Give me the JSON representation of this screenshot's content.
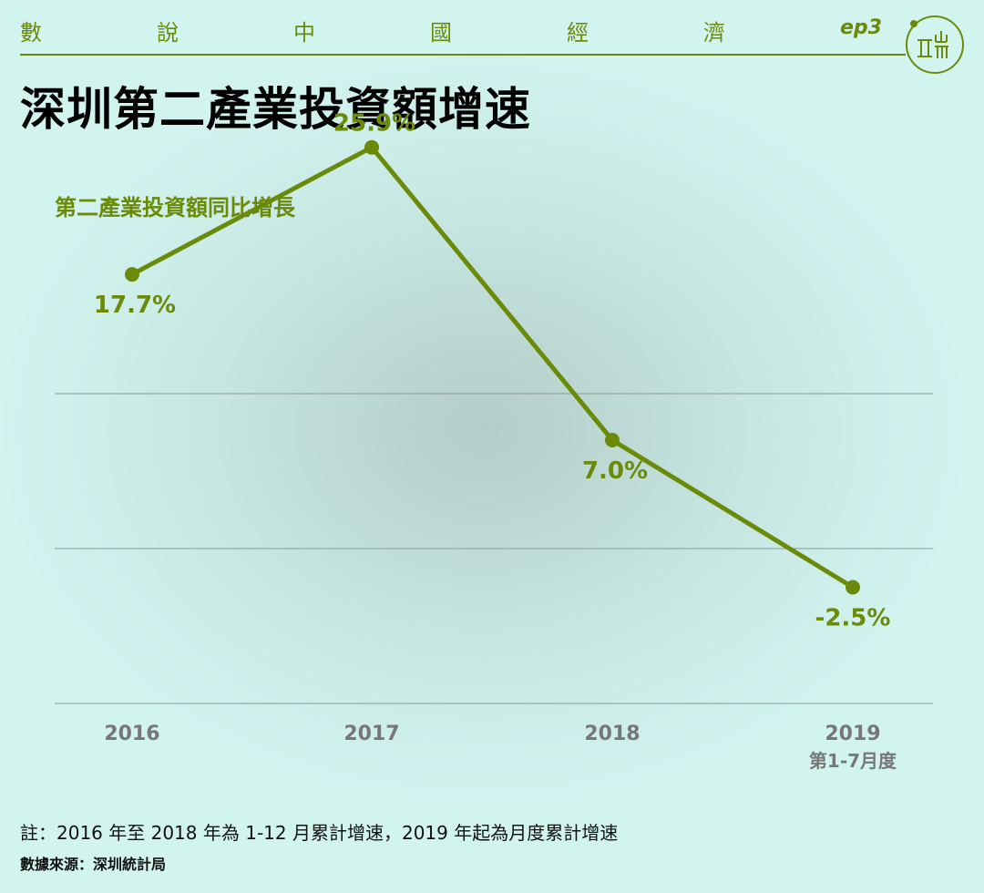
{
  "header": {
    "series_title": [
      "數",
      "說",
      "中",
      "國",
      "經",
      "濟"
    ],
    "episode": "ep3"
  },
  "title": "深圳第二產業投資額增速",
  "colors": {
    "accent": "#6b8a0a",
    "gridline": "#8a9a96",
    "axis_label": "#777777"
  },
  "icons": {
    "logo": "initium-logo-icon"
  },
  "chart_data": {
    "type": "line",
    "title": "第二產業投資額同比增長",
    "categories": [
      "2016",
      "2017",
      "2018",
      "2019"
    ],
    "category_sublabels": [
      "",
      "",
      "",
      "第1-7月度"
    ],
    "series": [
      {
        "values": [
          17.7,
          25.9,
          7.0,
          -2.5
        ]
      }
    ],
    "data_labels": [
      "17.7%",
      "25.9%",
      "7.0%",
      "-2.5%"
    ],
    "label_placement": [
      "below",
      "above",
      "below",
      "below"
    ],
    "ylim": [
      -10,
      20
    ],
    "grid": true,
    "legend": "none"
  },
  "footer": {
    "note": "註：2016 年至 2018 年為 1-12 月累計增速，2019 年起為月度累計增速",
    "source": "數據來源：深圳統計局"
  }
}
